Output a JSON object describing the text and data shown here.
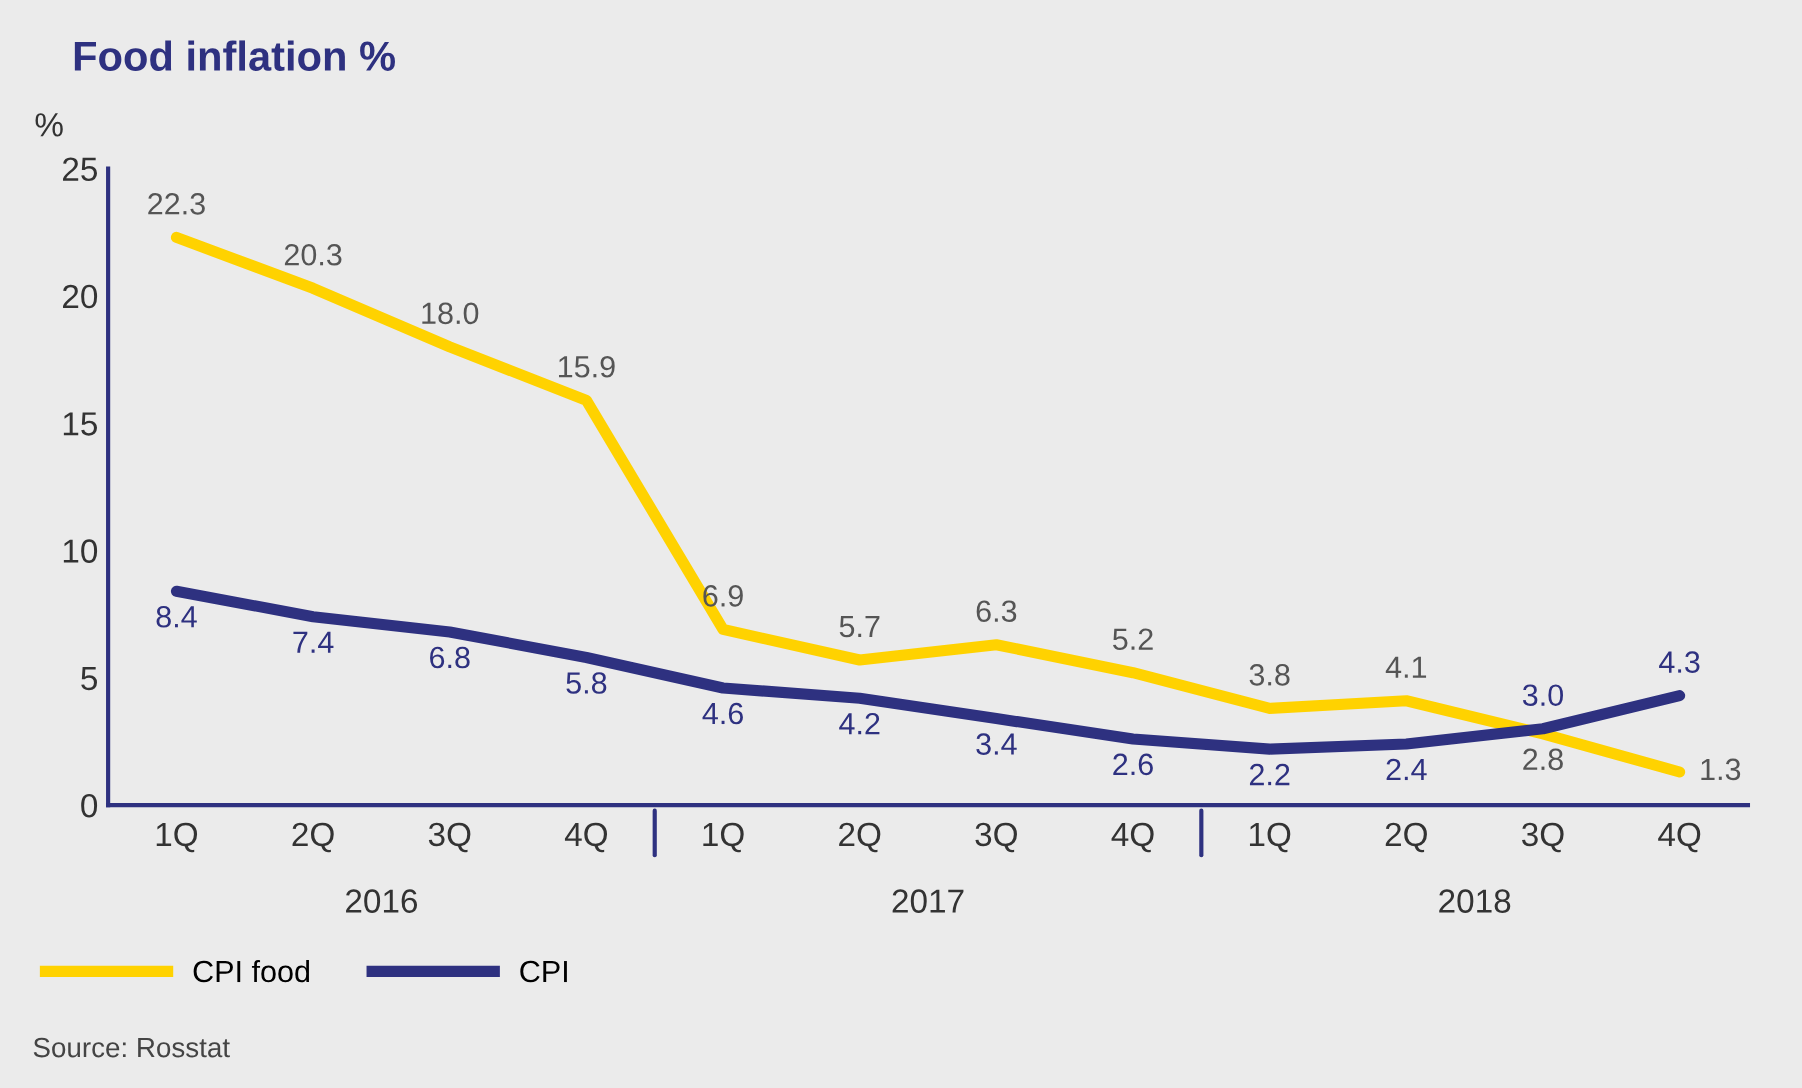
{
  "chart_data": {
    "type": "line",
    "title": "Food inflation %",
    "ylabel": "%",
    "categories": [
      "1Q",
      "2Q",
      "3Q",
      "4Q",
      "1Q",
      "2Q",
      "3Q",
      "4Q",
      "1Q",
      "2Q",
      "3Q",
      "4Q"
    ],
    "series": [
      {
        "name": "CPI food",
        "color": "#ffd200",
        "values": [
          22.3,
          20.3,
          18.0,
          15.9,
          6.9,
          5.7,
          6.3,
          5.2,
          3.8,
          4.1,
          2.8,
          1.3
        ],
        "value_labels": [
          "22.3",
          "20.3",
          "18.0",
          "15.9",
          "6.9",
          "5.7",
          "6.3",
          "5.2",
          "3.8",
          "4.1",
          "2.8",
          "1.3"
        ]
      },
      {
        "name": "CPI",
        "color": "#2e3180",
        "values": [
          8.4,
          7.4,
          6.8,
          5.8,
          4.6,
          4.2,
          3.4,
          2.6,
          2.2,
          2.4,
          3.0,
          4.3
        ],
        "value_labels": [
          "8.4",
          "7.4",
          "6.8",
          "5.8",
          "4.6",
          "4.2",
          "3.4",
          "2.6",
          "2.2",
          "2.4",
          "3.0",
          "4.3"
        ]
      }
    ],
    "ylim": [
      0,
      25
    ],
    "yticks": [
      0,
      5,
      10,
      15,
      20,
      25
    ],
    "grid": false,
    "legend": "bottom left",
    "marker": "none",
    "line_style": "solid",
    "annotations": [
      "2016",
      "2017",
      "2018",
      "Source: Rosstat"
    ]
  }
}
